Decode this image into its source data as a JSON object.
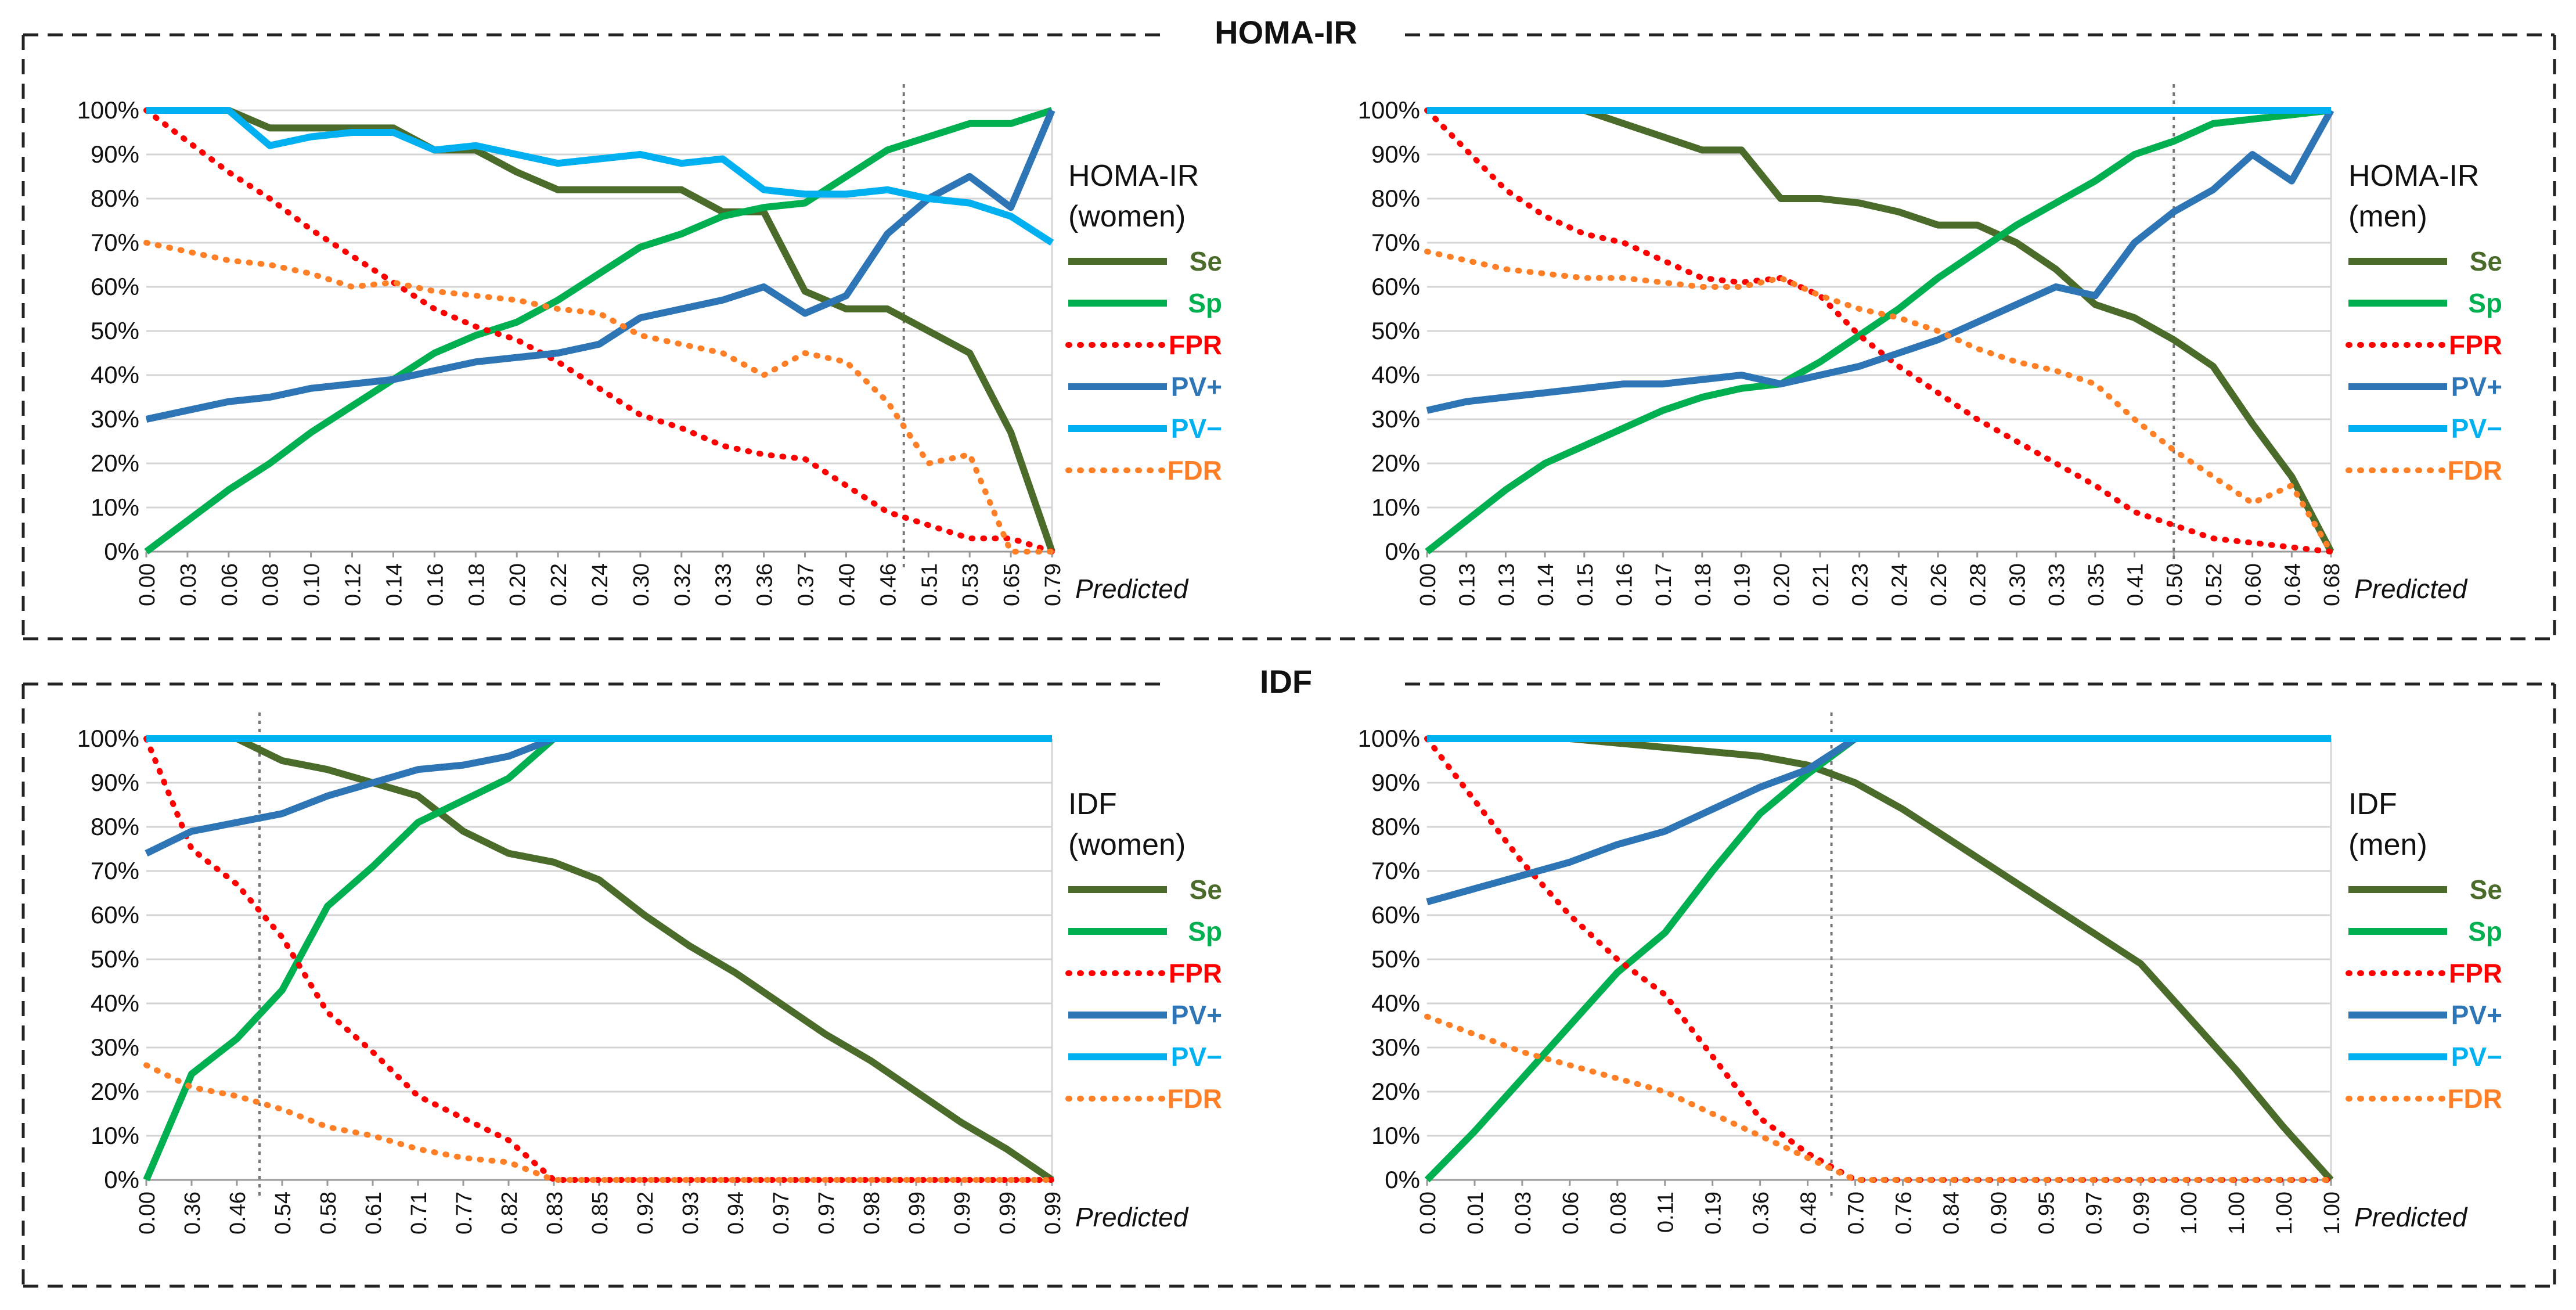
{
  "sections": [
    {
      "title": "HOMA-IR"
    },
    {
      "title": "IDF"
    }
  ],
  "series_legend": [
    {
      "name": "Se",
      "color": "#4b6b2b",
      "dash": "solid"
    },
    {
      "name": "Sp",
      "color": "#00b050",
      "dash": "solid"
    },
    {
      "name": "FPR",
      "color": "#ff0000",
      "dash": "dotted"
    },
    {
      "name": "PV+",
      "color": "#2e75b6",
      "dash": "solid"
    },
    {
      "name": "PV−",
      "color": "#00b0f0",
      "dash": "solid"
    },
    {
      "name": "FDR",
      "color": "#ff7f27",
      "dash": "dotted"
    }
  ],
  "chart_data": [
    {
      "type": "line",
      "section": "HOMA-IR",
      "label_line1": "HOMA-IR",
      "label_line2": "(women)",
      "xlabel": "Predicted",
      "ylim": [
        0,
        100
      ],
      "yticks": [
        "0%",
        "10%",
        "20%",
        "30%",
        "40%",
        "50%",
        "60%",
        "70%",
        "80%",
        "90%",
        "100%"
      ],
      "categories": [
        "0.00",
        "0.03",
        "0.06",
        "0.08",
        "0.10",
        "0.12",
        "0.14",
        "0.16",
        "0.18",
        "0.20",
        "0.22",
        "0.24",
        "0.30",
        "0.32",
        "0.33",
        "0.36",
        "0.37",
        "0.40",
        "0.46",
        "0.51",
        "0.53",
        "0.65",
        "0.79"
      ],
      "cutoff_index": 18.4,
      "series": [
        {
          "name": "Se",
          "values": [
            100,
            100,
            100,
            96,
            96,
            96,
            96,
            91,
            91,
            86,
            82,
            82,
            82,
            82,
            77,
            77,
            59,
            55,
            55,
            50,
            45,
            27,
            0
          ]
        },
        {
          "name": "Sp",
          "values": [
            0,
            7,
            14,
            20,
            27,
            33,
            39,
            45,
            49,
            52,
            57,
            63,
            69,
            72,
            76,
            78,
            79,
            85,
            91,
            94,
            97,
            97,
            100
          ]
        },
        {
          "name": "FPR",
          "values": [
            100,
            93,
            86,
            80,
            73,
            67,
            61,
            55,
            51,
            48,
            43,
            37,
            31,
            28,
            24,
            22,
            21,
            15,
            9,
            6,
            3,
            3,
            0
          ]
        },
        {
          "name": "PV+",
          "values": [
            30,
            32,
            34,
            35,
            37,
            38,
            39,
            41,
            43,
            44,
            45,
            47,
            53,
            55,
            57,
            60,
            54,
            58,
            72,
            80,
            85,
            78,
            100
          ]
        },
        {
          "name": "PV−",
          "values": [
            100,
            100,
            100,
            92,
            94,
            95,
            95,
            91,
            92,
            90,
            88,
            89,
            90,
            88,
            89,
            82,
            81,
            81,
            82,
            80,
            79,
            76,
            70
          ]
        },
        {
          "name": "FDR",
          "values": [
            70,
            68,
            66,
            65,
            63,
            60,
            61,
            59,
            58,
            57,
            55,
            54,
            49,
            47,
            45,
            40,
            45,
            43,
            34,
            20,
            22,
            0,
            0
          ]
        }
      ]
    },
    {
      "type": "line",
      "section": "HOMA-IR",
      "label_line1": "HOMA-IR",
      "label_line2": "(men)",
      "xlabel": "Predicted",
      "ylim": [
        0,
        100
      ],
      "yticks": [
        "0%",
        "10%",
        "20%",
        "30%",
        "40%",
        "50%",
        "60%",
        "70%",
        "80%",
        "90%",
        "100%"
      ],
      "categories": [
        "0.00",
        "0.13",
        "0.13",
        "0.14",
        "0.15",
        "0.16",
        "0.17",
        "0.18",
        "0.19",
        "0.20",
        "0.21",
        "0.23",
        "0.24",
        "0.26",
        "0.28",
        "0.30",
        "0.33",
        "0.35",
        "0.41",
        "0.50",
        "0.52",
        "0.60",
        "0.64",
        "0.68"
      ],
      "cutoff_index": 19.0,
      "series": [
        {
          "name": "Se",
          "values": [
            100,
            100,
            100,
            100,
            100,
            97,
            94,
            91,
            91,
            80,
            80,
            79,
            77,
            74,
            74,
            70,
            64,
            56,
            53,
            48,
            42,
            29,
            17,
            0
          ]
        },
        {
          "name": "Sp",
          "values": [
            0,
            7,
            14,
            20,
            24,
            28,
            32,
            35,
            37,
            38,
            43,
            49,
            55,
            62,
            68,
            74,
            79,
            84,
            90,
            93,
            97,
            98,
            99,
            100
          ]
        },
        {
          "name": "FPR",
          "values": [
            100,
            91,
            82,
            76,
            72,
            70,
            66,
            62,
            61,
            62,
            58,
            49,
            42,
            36,
            30,
            25,
            20,
            15,
            9,
            6,
            3,
            2,
            1,
            0
          ]
        },
        {
          "name": "PV+",
          "values": [
            32,
            34,
            35,
            36,
            37,
            38,
            38,
            39,
            40,
            38,
            40,
            42,
            45,
            48,
            52,
            56,
            60,
            58,
            70,
            77,
            82,
            90,
            84,
            100
          ]
        },
        {
          "name": "PV−",
          "values": [
            100,
            100,
            100,
            100,
            100,
            100,
            100,
            100,
            100,
            100,
            100,
            100,
            100,
            100,
            100,
            100,
            100,
            100,
            100,
            100,
            100,
            100,
            100,
            100
          ]
        },
        {
          "name": "FDR",
          "values": [
            68,
            66,
            64,
            63,
            62,
            62,
            61,
            60,
            60,
            62,
            58,
            55,
            53,
            50,
            46,
            43,
            41,
            38,
            30,
            23,
            17,
            11,
            15,
            0
          ]
        }
      ]
    },
    {
      "type": "line",
      "section": "IDF",
      "label_line1": "IDF",
      "label_line2": "(women)",
      "xlabel": "Predicted",
      "ylim": [
        0,
        100
      ],
      "yticks": [
        "0%",
        "10%",
        "20%",
        "30%",
        "40%",
        "50%",
        "60%",
        "70%",
        "80%",
        "90%",
        "100%"
      ],
      "categories": [
        "0.00",
        "0.36",
        "0.46",
        "0.54",
        "0.58",
        "0.61",
        "0.71",
        "0.77",
        "0.82",
        "0.83",
        "0.85",
        "0.92",
        "0.93",
        "0.94",
        "0.97",
        "0.97",
        "0.98",
        "0.99",
        "0.99",
        "0.99",
        "0.99"
      ],
      "cutoff_index": 2.5,
      "series": [
        {
          "name": "Se",
          "values": [
            100,
            100,
            100,
            95,
            93,
            90,
            87,
            79,
            74,
            72,
            68,
            60,
            53,
            47,
            40,
            33,
            27,
            20,
            13,
            7,
            0
          ]
        },
        {
          "name": "Sp",
          "values": [
            0,
            24,
            32,
            43,
            62,
            71,
            81,
            86,
            91,
            100,
            100,
            100,
            100,
            100,
            100,
            100,
            100,
            100,
            100,
            100,
            100
          ]
        },
        {
          "name": "FPR",
          "values": [
            100,
            75,
            67,
            55,
            38,
            29,
            19,
            14,
            9,
            0,
            0,
            0,
            0,
            0,
            0,
            0,
            0,
            0,
            0,
            0,
            0
          ]
        },
        {
          "name": "PV+",
          "values": [
            74,
            79,
            81,
            83,
            87,
            90,
            93,
            94,
            96,
            100,
            100,
            100,
            100,
            100,
            100,
            100,
            100,
            100,
            100,
            100,
            100
          ]
        },
        {
          "name": "PV−",
          "values": [
            100,
            100,
            100,
            100,
            100,
            100,
            100,
            100,
            100,
            100,
            100,
            100,
            100,
            100,
            100,
            100,
            100,
            100,
            100,
            100,
            100
          ]
        },
        {
          "name": "FDR",
          "values": [
            26,
            21,
            19,
            16,
            12,
            10,
            7,
            5,
            4,
            0,
            0,
            0,
            0,
            0,
            0,
            0,
            0,
            0,
            0,
            0,
            0
          ]
        }
      ]
    },
    {
      "type": "line",
      "section": "IDF",
      "label_line1": "IDF",
      "label_line2": "(men)",
      "xlabel": "Predicted",
      "ylim": [
        0,
        100
      ],
      "yticks": [
        "0%",
        "10%",
        "20%",
        "30%",
        "40%",
        "50%",
        "60%",
        "70%",
        "80%",
        "90%",
        "100%"
      ],
      "categories": [
        "0.00",
        "0.01",
        "0.03",
        "0.06",
        "0.08",
        "0.11",
        "0.19",
        "0.36",
        "0.48",
        "0.70",
        "0.76",
        "0.84",
        "0.90",
        "0.95",
        "0.97",
        "0.99",
        "1.00",
        "1.00",
        "1.00",
        "1.00"
      ],
      "cutoff_index": 8.5,
      "series": [
        {
          "name": "Se",
          "values": [
            100,
            100,
            100,
            100,
            99,
            98,
            97,
            96,
            94,
            90,
            84,
            77,
            70,
            63,
            56,
            49,
            37,
            25,
            12,
            0
          ]
        },
        {
          "name": "Sp",
          "values": [
            0,
            11,
            23,
            35,
            47,
            56,
            70,
            83,
            92,
            100,
            100,
            100,
            100,
            100,
            100,
            100,
            100,
            100,
            100,
            100
          ]
        },
        {
          "name": "FPR",
          "values": [
            100,
            86,
            72,
            60,
            50,
            42,
            28,
            14,
            6,
            0,
            0,
            0,
            0,
            0,
            0,
            0,
            0,
            0,
            0,
            0
          ]
        },
        {
          "name": "PV+",
          "values": [
            63,
            66,
            69,
            72,
            76,
            79,
            84,
            89,
            93,
            100,
            100,
            100,
            100,
            100,
            100,
            100,
            100,
            100,
            100,
            100
          ]
        },
        {
          "name": "PV−",
          "values": [
            100,
            100,
            100,
            100,
            100,
            100,
            100,
            100,
            100,
            100,
            100,
            100,
            100,
            100,
            100,
            100,
            100,
            100,
            100,
            100
          ]
        },
        {
          "name": "FDR",
          "values": [
            37,
            33,
            29,
            26,
            23,
            20,
            15,
            10,
            5,
            0,
            0,
            0,
            0,
            0,
            0,
            0,
            0,
            0,
            0,
            0
          ]
        }
      ]
    }
  ]
}
